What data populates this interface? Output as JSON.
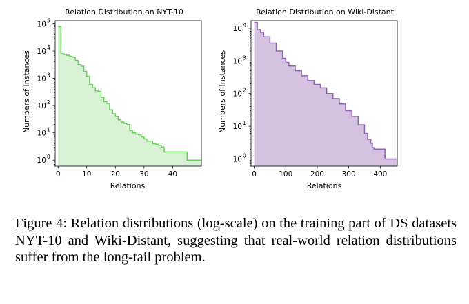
{
  "chart_data": [
    {
      "type": "area",
      "title": "Relation Distribution on NYT-10",
      "xlabel": "Relations",
      "ylabel": "Numbers of Instances",
      "yscale": "log",
      "xlim": [
        -1,
        50
      ],
      "xticks": [
        0,
        10,
        20,
        30,
        40
      ],
      "ylim": [
        0.6,
        130000
      ],
      "yticks_exp": [
        0,
        1,
        2,
        3,
        4,
        5
      ],
      "ytick_base": "10",
      "fill_color": "#d9f2d6",
      "line_color": "#69cf5b",
      "grid": false,
      "x": [
        0,
        1,
        2,
        3,
        4,
        5,
        6,
        7,
        8,
        9,
        10,
        11,
        12,
        13,
        14,
        15,
        16,
        17,
        18,
        19,
        20,
        21,
        22,
        23,
        24,
        25,
        26,
        27,
        28,
        29,
        30,
        31,
        32,
        33,
        34,
        35,
        36,
        37,
        38,
        39,
        40,
        41,
        42,
        43,
        44,
        45,
        46,
        47,
        48,
        49
      ],
      "values": [
        80000,
        8000,
        7500,
        7000,
        6500,
        6000,
        4500,
        3200,
        2800,
        1800,
        1200,
        600,
        450,
        350,
        330,
        200,
        140,
        120,
        70,
        50,
        40,
        30,
        25,
        22,
        20,
        12,
        10,
        9,
        8.5,
        7,
        6,
        5,
        5,
        4,
        3.8,
        3.5,
        3,
        2,
        2,
        2,
        2,
        2,
        2,
        2,
        2,
        1,
        1,
        1,
        1,
        1
      ]
    },
    {
      "type": "area",
      "title": "Relation Distribution on Wiki-Distant",
      "xlabel": "Relations",
      "ylabel": "Numbers of Instances",
      "yscale": "log",
      "xlim": [
        -10,
        454
      ],
      "xticks": [
        0,
        100,
        200,
        300,
        400
      ],
      "ylim": [
        0.6,
        17000
      ],
      "yticks_exp": [
        0,
        1,
        2,
        3,
        4
      ],
      "ytick_base": "10",
      "fill_color": "#d5c2e1",
      "line_color": "#8c63ad",
      "grid": false,
      "x": [
        0,
        10,
        20,
        30,
        50,
        70,
        90,
        100,
        110,
        130,
        150,
        170,
        190,
        210,
        230,
        250,
        270,
        290,
        310,
        330,
        350,
        360,
        370,
        375,
        380,
        385,
        390,
        400,
        410,
        415,
        420,
        454
      ],
      "values": [
        15000,
        9000,
        7500,
        5500,
        3500,
        2000,
        1200,
        900,
        700,
        500,
        350,
        250,
        190,
        150,
        100,
        70,
        48,
        30,
        20,
        11,
        6,
        4,
        3,
        2.2,
        2,
        2,
        2,
        2,
        2,
        1,
        1,
        1
      ]
    }
  ],
  "caption": "Figure 4: Relation distributions (log-scale) on the training part of DS datasets NYT-10 and Wiki-Distant, suggesting that real-world relation distributions suffer from the long-tail problem."
}
